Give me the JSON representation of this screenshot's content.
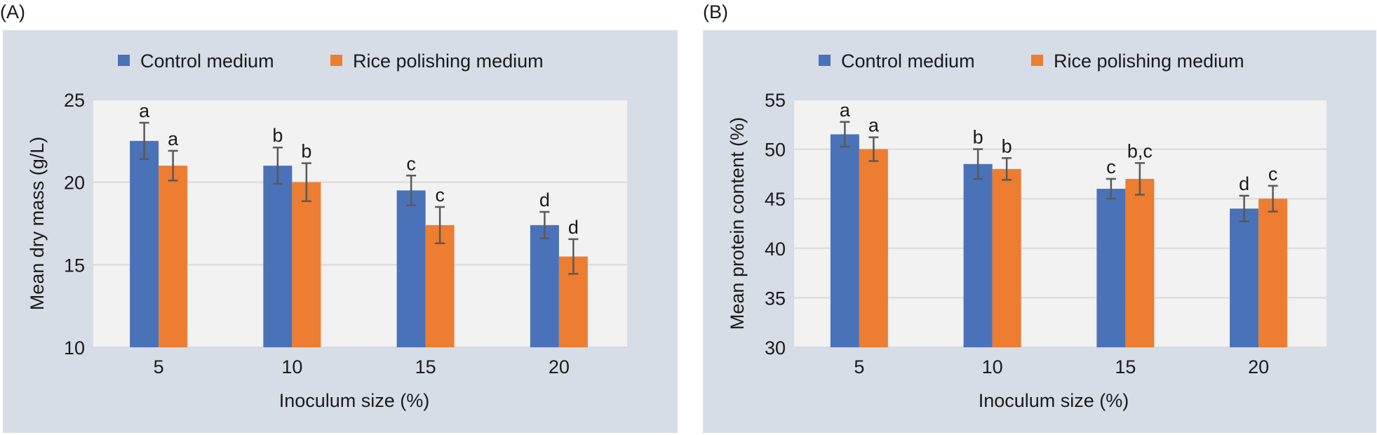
{
  "colors": {
    "control": "#4a72b8",
    "rice": "#ed7d31",
    "plot_bg": "#f2f2f2",
    "panel_bg": "#d6dde7",
    "grid": "#d9d9d9",
    "error": "#595959"
  },
  "chart_data": [
    {
      "type": "bar",
      "panel_label": "(A)",
      "categories": [
        "5",
        "10",
        "15",
        "20"
      ],
      "xlabel": "Inoculum size (%)",
      "ylabel": "Mean dry mass (g/L)",
      "ylim": [
        10,
        25
      ],
      "yticks": [
        "10",
        "15",
        "20",
        "25"
      ],
      "grid": true,
      "legend_position": "top",
      "series": [
        {
          "name": "Control medium",
          "values": [
            22.5,
            21.0,
            19.5,
            17.4
          ],
          "errors": [
            1.1,
            1.1,
            0.9,
            0.8
          ],
          "labels": [
            "a",
            "b",
            "c",
            "d"
          ]
        },
        {
          "name": "Rice polishing medium",
          "values": [
            21.0,
            20.0,
            17.4,
            15.5
          ],
          "errors": [
            0.9,
            1.15,
            1.1,
            1.05
          ],
          "labels": [
            "a",
            "b",
            "c",
            "d"
          ]
        }
      ]
    },
    {
      "type": "bar",
      "panel_label": "(B)",
      "categories": [
        "5",
        "10",
        "15",
        "20"
      ],
      "xlabel": "Inoculum size (%)",
      "ylabel": "Mean protein content (%)",
      "ylim": [
        30,
        55
      ],
      "yticks": [
        "30",
        "35",
        "40",
        "45",
        "50",
        "55"
      ],
      "grid": true,
      "legend_position": "top",
      "series": [
        {
          "name": "Control medium",
          "values": [
            51.5,
            48.5,
            46.0,
            44.0
          ],
          "errors": [
            1.25,
            1.5,
            1.0,
            1.3
          ],
          "labels": [
            "a",
            "b",
            "c",
            "d"
          ]
        },
        {
          "name": "Rice polishing medium",
          "values": [
            50.0,
            48.0,
            47.0,
            45.0
          ],
          "errors": [
            1.2,
            1.1,
            1.6,
            1.3
          ],
          "labels": [
            "a",
            "b",
            "b,c",
            "c"
          ]
        }
      ]
    }
  ]
}
